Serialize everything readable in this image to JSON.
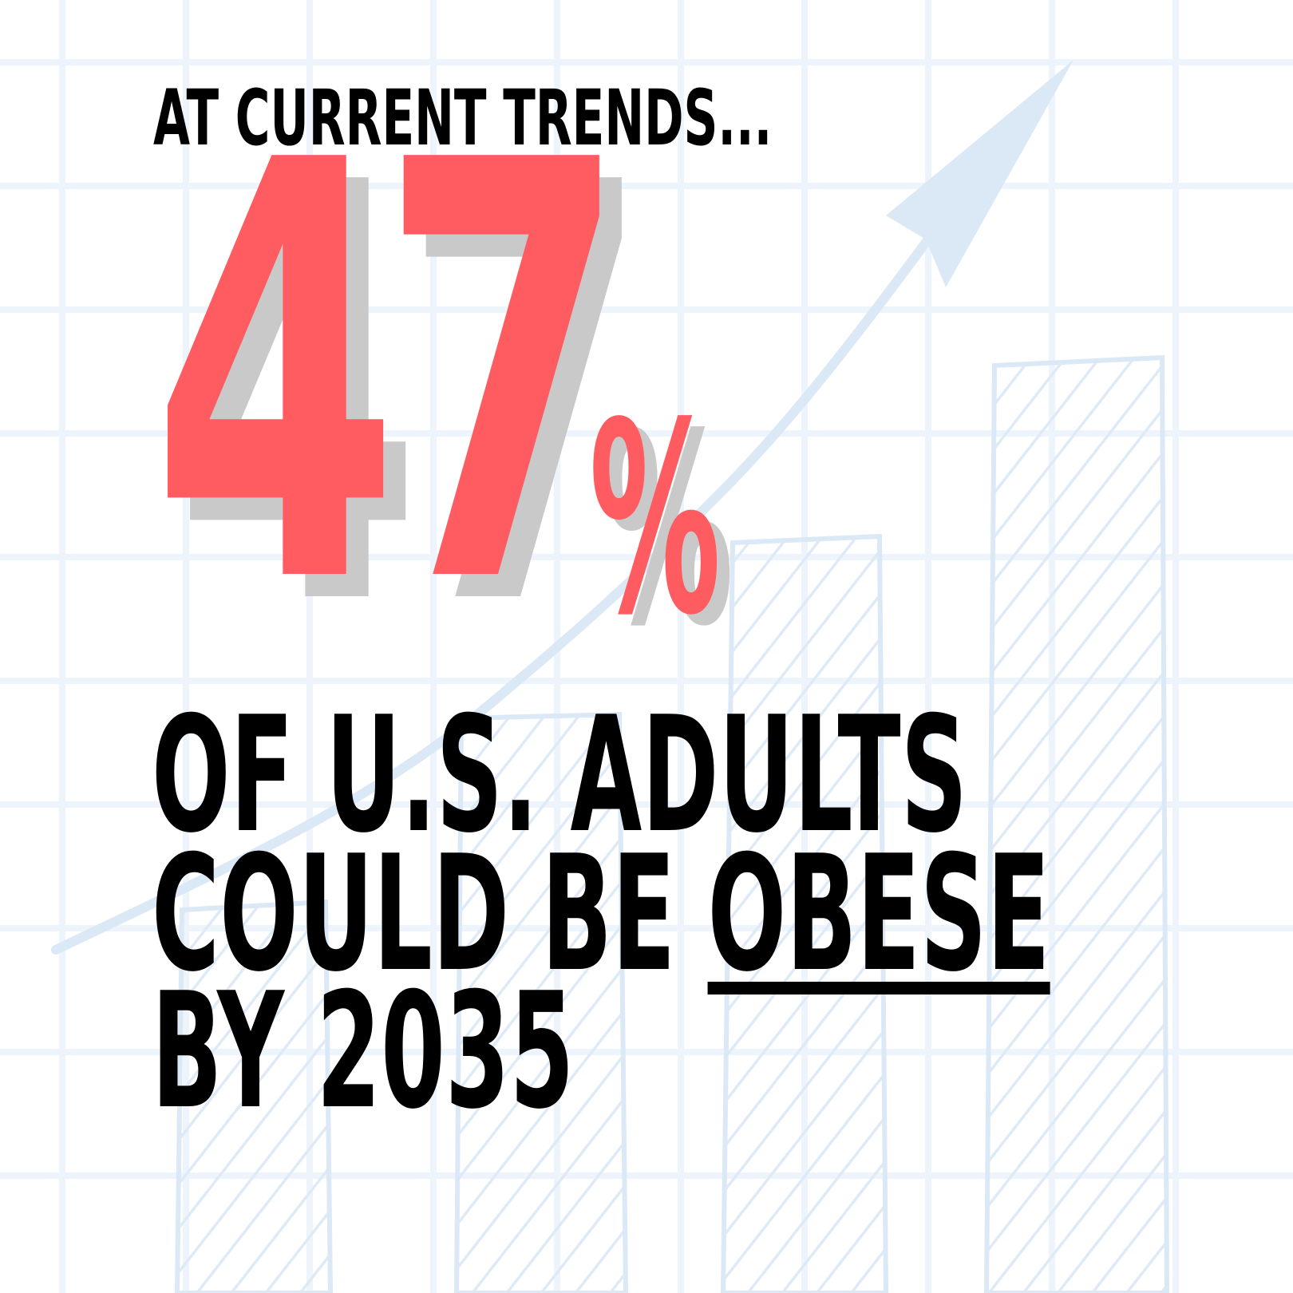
{
  "headline": {
    "eyebrow": "AT CURRENT TRENDS...",
    "stat_number": "47",
    "stat_percent": "%",
    "line1": "OF U.S. ADULTS",
    "line2_prefix": "COULD BE ",
    "line2_emphasis": "OBESE",
    "line3": "BY 2035"
  },
  "colors": {
    "background": "#ffffff",
    "grid": "#eef4fb",
    "sketch": "#dbe8f6",
    "accent": "#ff5c61",
    "shadow": "#c9c9c9",
    "text": "#000000"
  },
  "decor": {
    "background_icon": "rising-bar-chart-sketch"
  }
}
